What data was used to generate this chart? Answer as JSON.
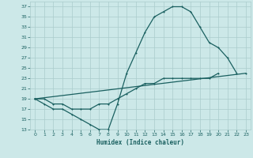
{
  "xlabel": "Humidex (Indice chaleur)",
  "xlim": [
    -0.5,
    23.5
  ],
  "ylim": [
    13,
    38
  ],
  "yticks": [
    13,
    15,
    17,
    19,
    21,
    23,
    25,
    27,
    29,
    31,
    33,
    35,
    37
  ],
  "xticks": [
    0,
    1,
    2,
    3,
    4,
    5,
    6,
    7,
    8,
    9,
    10,
    11,
    12,
    13,
    14,
    15,
    16,
    17,
    18,
    19,
    20,
    21,
    22,
    23
  ],
  "bg_color": "#cce8e8",
  "grid_color": "#aacccc",
  "line_color": "#1a6060",
  "line1_y": [
    19,
    18,
    17,
    17,
    16,
    15,
    14,
    13,
    13,
    18,
    24,
    28,
    32,
    35,
    36,
    37,
    37,
    36,
    33,
    30,
    29,
    27,
    24,
    null
  ],
  "line2_y": [
    19,
    null,
    null,
    null,
    null,
    null,
    null,
    null,
    null,
    null,
    null,
    null,
    null,
    null,
    null,
    null,
    null,
    null,
    null,
    null,
    null,
    null,
    null,
    24
  ],
  "line3_y": [
    19,
    19,
    18,
    18,
    17,
    17,
    17,
    18,
    18,
    19,
    20,
    21,
    22,
    22,
    23,
    23,
    23,
    23,
    23,
    23,
    24,
    null,
    null,
    null
  ]
}
